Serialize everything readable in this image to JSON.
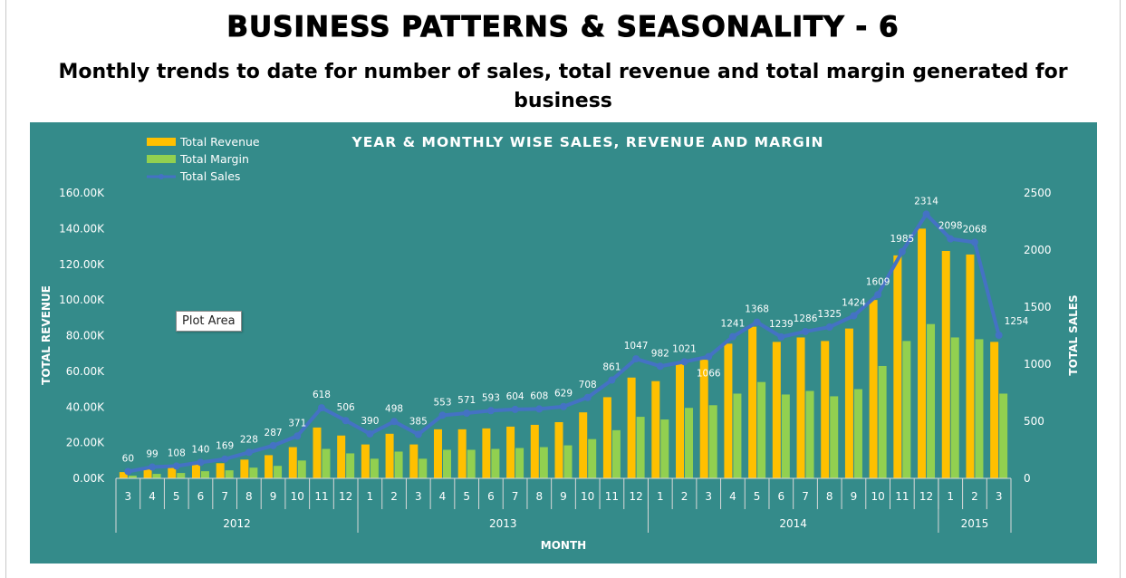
{
  "page": {
    "title": "BUSINESS PATTERNS & SEASONALITY - 6",
    "subtitle": "Monthly trends to date for number of sales, total revenue and total margin generated for business"
  },
  "tooltip": {
    "text": "Plot Area"
  },
  "colors": {
    "background": "#348b8a",
    "revenue": "#ffc000",
    "margin": "#92d050",
    "sales_line": "#4472c4",
    "text": "#ffffff"
  },
  "chart_data": {
    "type": "bar",
    "title": "YEAR & MONTHLY WISE SALES, REVENUE AND MARGIN",
    "xlabel": "MONTH",
    "ylabel": "TOTAL REVENUE",
    "y2label": "TOTAL SALES",
    "ylim": [
      0,
      160000
    ],
    "y2lim": [
      0,
      2500
    ],
    "yticks": [
      "0.00K",
      "20.00K",
      "40.00K",
      "60.00K",
      "80.00K",
      "100.00K",
      "120.00K",
      "140.00K",
      "160.00K"
    ],
    "y2ticks": [
      "0",
      "500",
      "1000",
      "1500",
      "2000",
      "2500"
    ],
    "legend_position": "top-left",
    "grid": false,
    "years": [
      {
        "label": "2012",
        "count": 10
      },
      {
        "label": "2013",
        "count": 12
      },
      {
        "label": "2014",
        "count": 12
      },
      {
        "label": "2015",
        "count": 3
      }
    ],
    "categories": [
      "3",
      "4",
      "5",
      "6",
      "7",
      "8",
      "9",
      "10",
      "11",
      "12",
      "1",
      "2",
      "3",
      "4",
      "5",
      "6",
      "7",
      "8",
      "9",
      "10",
      "11",
      "12",
      "1",
      "2",
      "3",
      "4",
      "5",
      "6",
      "7",
      "8",
      "9",
      "10",
      "11",
      "12",
      "1",
      "2",
      "3"
    ],
    "series": [
      {
        "name": "Total Revenue",
        "type": "bar",
        "axis": "left",
        "values": [
          3500,
          5500,
          6000,
          8000,
          8500,
          10500,
          13000,
          17500,
          28500,
          24000,
          19000,
          25000,
          19000,
          27500,
          27500,
          28000,
          29000,
          30000,
          31500,
          37000,
          45500,
          56500,
          54500,
          64000,
          66500,
          75500,
          85000,
          76500,
          79000,
          77000,
          84000,
          100000,
          125000,
          140000,
          127500,
          125500,
          76500
        ]
      },
      {
        "name": "Total Margin",
        "type": "bar",
        "axis": "left",
        "values": [
          1500,
          2500,
          3000,
          4000,
          4500,
          6000,
          7000,
          10000,
          16500,
          14000,
          11000,
          15000,
          11000,
          16000,
          16000,
          16500,
          17000,
          17500,
          18500,
          22000,
          27000,
          34500,
          33000,
          39500,
          41000,
          47500,
          54000,
          47000,
          49000,
          46000,
          50000,
          63000,
          77000,
          86500,
          79000,
          78000,
          47500
        ]
      },
      {
        "name": "Total Sales",
        "type": "line",
        "axis": "right",
        "values": [
          60,
          99,
          108,
          140,
          169,
          228,
          287,
          371,
          618,
          506,
          390,
          498,
          385,
          553,
          571,
          593,
          604,
          608,
          629,
          708,
          861,
          1047,
          982,
          1021,
          1066,
          1241,
          1368,
          1239,
          1286,
          1325,
          1424,
          1609,
          1985,
          2314,
          2098,
          2068,
          1254
        ]
      }
    ]
  }
}
